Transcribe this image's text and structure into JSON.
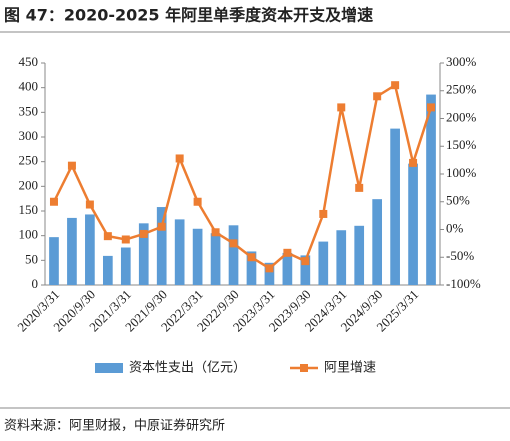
{
  "chart_data": {
    "type": "bar-line",
    "title": "图 47：2020-2025 年阿里单季度资本开支及增速",
    "source": "资料来源：阿里财报，中原证券研究所",
    "categories": [
      "2020/3/31",
      null,
      "2020/9/30",
      null,
      "2021/3/31",
      null,
      "2021/9/30",
      null,
      "2022/3/31",
      null,
      "2022/9/30",
      null,
      "2023/3/31",
      null,
      "2023/9/30",
      null,
      "2024/3/31",
      null,
      "2024/9/30",
      null,
      "2025/3/31",
      null
    ],
    "series": [
      {
        "name": "资本性支出（亿元）",
        "type": "bar",
        "color": "#5b9bd5",
        "axis": "y",
        "values": [
          97,
          136,
          143,
          59,
          76,
          125,
          158,
          133,
          114,
          105,
          121,
          68,
          45,
          65,
          60,
          88,
          111,
          120,
          174,
          317,
          246,
          386
        ]
      },
      {
        "name": "阿里增速",
        "type": "line",
        "color": "#ed7d31",
        "axis": "y2",
        "values": [
          50,
          115,
          45,
          -12,
          -18,
          -8,
          5,
          128,
          50,
          -5,
          -25,
          -50,
          -70,
          -42,
          -57,
          28,
          220,
          75,
          240,
          260,
          120,
          220
        ]
      }
    ],
    "ylim": [
      0,
      450
    ],
    "yticks": [
      0,
      50,
      100,
      150,
      200,
      250,
      300,
      350,
      400,
      450
    ],
    "y2lim": [
      -100,
      300
    ],
    "y2ticks": [
      {
        "value": -100,
        "label": "-100%"
      },
      {
        "value": -50,
        "label": "-50%"
      },
      {
        "value": 0,
        "label": "0%"
      },
      {
        "value": 50,
        "label": "50%"
      },
      {
        "value": 100,
        "label": "100%"
      },
      {
        "value": 150,
        "label": "150%"
      },
      {
        "value": 200,
        "label": "200%"
      },
      {
        "value": 250,
        "label": "250%"
      },
      {
        "value": 300,
        "label": "300%"
      }
    ],
    "grid": false,
    "legend": "bottom"
  }
}
